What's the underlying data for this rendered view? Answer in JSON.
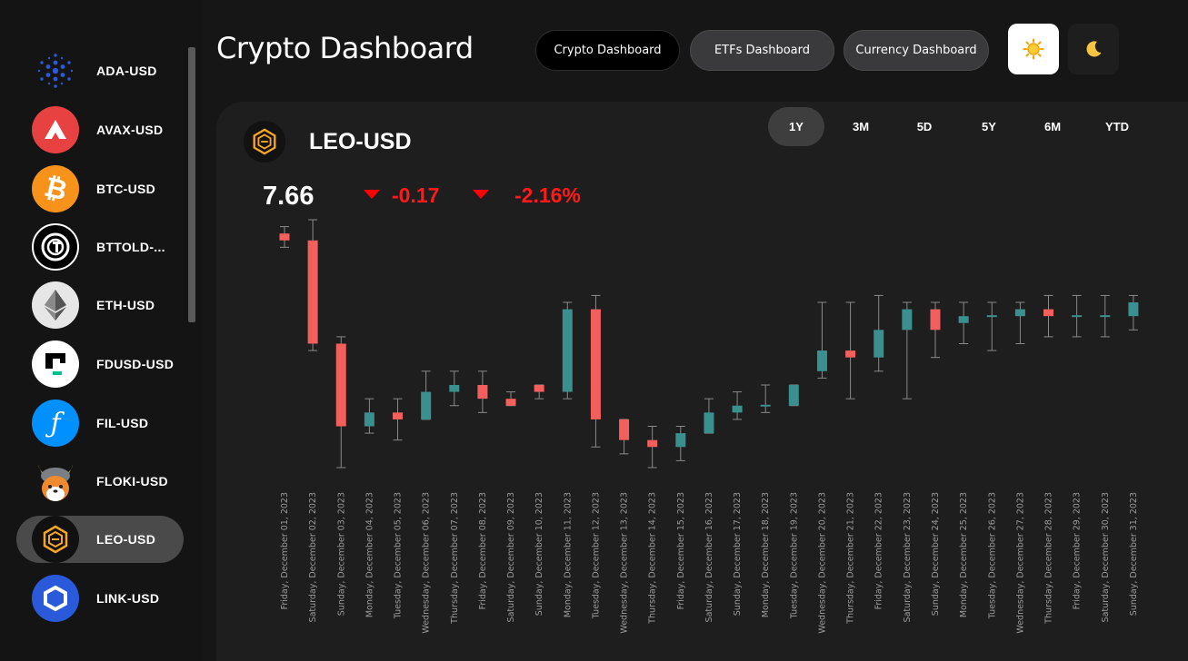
{
  "sidebar": {
    "items": [
      {
        "label": "ADA-USD",
        "icon": "cardano-icon",
        "active": false
      },
      {
        "label": "AVAX-USD",
        "icon": "avalanche-icon",
        "active": false
      },
      {
        "label": "BTC-USD",
        "icon": "bitcoin-icon",
        "active": false
      },
      {
        "label": "BTTOLD-...",
        "icon": "bittorrent-icon",
        "active": false
      },
      {
        "label": "ETH-USD",
        "icon": "ethereum-icon",
        "active": false
      },
      {
        "label": "FDUSD-USD",
        "icon": "fdusd-icon",
        "active": false
      },
      {
        "label": "FIL-USD",
        "icon": "filecoin-icon",
        "active": false
      },
      {
        "label": "FLOKI-USD",
        "icon": "floki-icon",
        "active": false
      },
      {
        "label": "LEO-USD",
        "icon": "leo-icon",
        "active": true
      },
      {
        "label": "LINK-USD",
        "icon": "chainlink-icon",
        "active": false
      }
    ]
  },
  "header": {
    "title": "Crypto Dashboard",
    "nav": [
      {
        "label": "Crypto Dashboard",
        "active": true
      },
      {
        "label": "ETFs Dashboard",
        "active": false
      },
      {
        "label": "Currency Dashboard",
        "active": false
      }
    ],
    "theme": {
      "light_icon": "sun-icon",
      "dark_icon": "moon-icon",
      "selected": "light"
    }
  },
  "card": {
    "coin": "LEO-USD",
    "coin_icon": "leo-icon",
    "price": "7.66",
    "change": "-0.17",
    "change_pct": "-2.16%",
    "change_direction": "down",
    "periods": [
      {
        "label": "1Y",
        "active": true
      },
      {
        "label": "3M",
        "active": false
      },
      {
        "label": "5D",
        "active": false
      },
      {
        "label": "5Y",
        "active": false
      },
      {
        "label": "6M",
        "active": false
      },
      {
        "label": "YTD",
        "active": false
      }
    ]
  },
  "colors": {
    "up": "#3a8f8f",
    "down": "#f25f5c",
    "wick": "#8a8a8a",
    "negative_text": "#ff1a1a"
  },
  "chart_data": {
    "type": "candlestick",
    "x": [
      "Friday, December 01, 2023",
      "Saturday, December 02, 2023",
      "Sunday, December 03, 2023",
      "Monday, December 04, 2023",
      "Tuesday, December 05, 2023",
      "Wednesday, December 06, 2023",
      "Thursday, December 07, 2023",
      "Friday, December 08, 2023",
      "Saturday, December 09, 2023",
      "Sunday, December 10, 2023",
      "Monday, December 11, 2023",
      "Tuesday, December 12, 2023",
      "Wednesday, December 13, 2023",
      "Thursday, December 14, 2023",
      "Friday, December 15, 2023",
      "Saturday, December 16, 2023",
      "Sunday, December 17, 2023",
      "Monday, December 18, 2023",
      "Tuesday, December 19, 2023",
      "Wednesday, December 20, 2023",
      "Thursday, December 21, 2023",
      "Friday, December 22, 2023",
      "Saturday, December 23, 2023",
      "Sunday, December 24, 2023",
      "Monday, December 25, 2023",
      "Tuesday, December 26, 2023",
      "Wednesday, December 27, 2023",
      "Thursday, December 28, 2023",
      "Friday, December 29, 2023",
      "Saturday, December 30, 2023",
      "Sunday, December 31, 2023"
    ],
    "open": [
      3.98,
      3.97,
      3.82,
      3.7,
      3.72,
      3.71,
      3.75,
      3.76,
      3.74,
      3.76,
      3.75,
      3.87,
      3.71,
      3.68,
      3.67,
      3.69,
      3.72,
      3.73,
      3.73,
      3.78,
      3.81,
      3.8,
      3.84,
      3.87,
      3.85,
      3.86,
      3.86,
      3.87,
      3.86,
      3.86,
      3.86
    ],
    "close": [
      3.97,
      3.82,
      3.7,
      3.72,
      3.71,
      3.75,
      3.76,
      3.74,
      3.73,
      3.75,
      3.87,
      3.71,
      3.68,
      3.67,
      3.69,
      3.72,
      3.73,
      3.73,
      3.76,
      3.81,
      3.8,
      3.84,
      3.87,
      3.84,
      3.86,
      3.86,
      3.87,
      3.86,
      3.86,
      3.86,
      3.88
    ],
    "high": [
      3.99,
      4.0,
      3.83,
      3.74,
      3.74,
      3.78,
      3.78,
      3.78,
      3.75,
      3.76,
      3.88,
      3.89,
      3.71,
      3.7,
      3.7,
      3.74,
      3.75,
      3.76,
      3.76,
      3.88,
      3.88,
      3.89,
      3.88,
      3.88,
      3.88,
      3.88,
      3.88,
      3.89,
      3.89,
      3.89,
      3.89
    ],
    "low": [
      3.96,
      3.81,
      3.64,
      3.69,
      3.68,
      3.71,
      3.73,
      3.72,
      3.73,
      3.74,
      3.74,
      3.67,
      3.66,
      3.64,
      3.65,
      3.69,
      3.71,
      3.72,
      3.73,
      3.77,
      3.74,
      3.78,
      3.74,
      3.8,
      3.82,
      3.81,
      3.82,
      3.83,
      3.83,
      3.83,
      3.84
    ],
    "xlabel": "",
    "ylabel": "",
    "ylim": [
      3.64,
      4.0
    ],
    "grid": false,
    "legend": "none"
  }
}
